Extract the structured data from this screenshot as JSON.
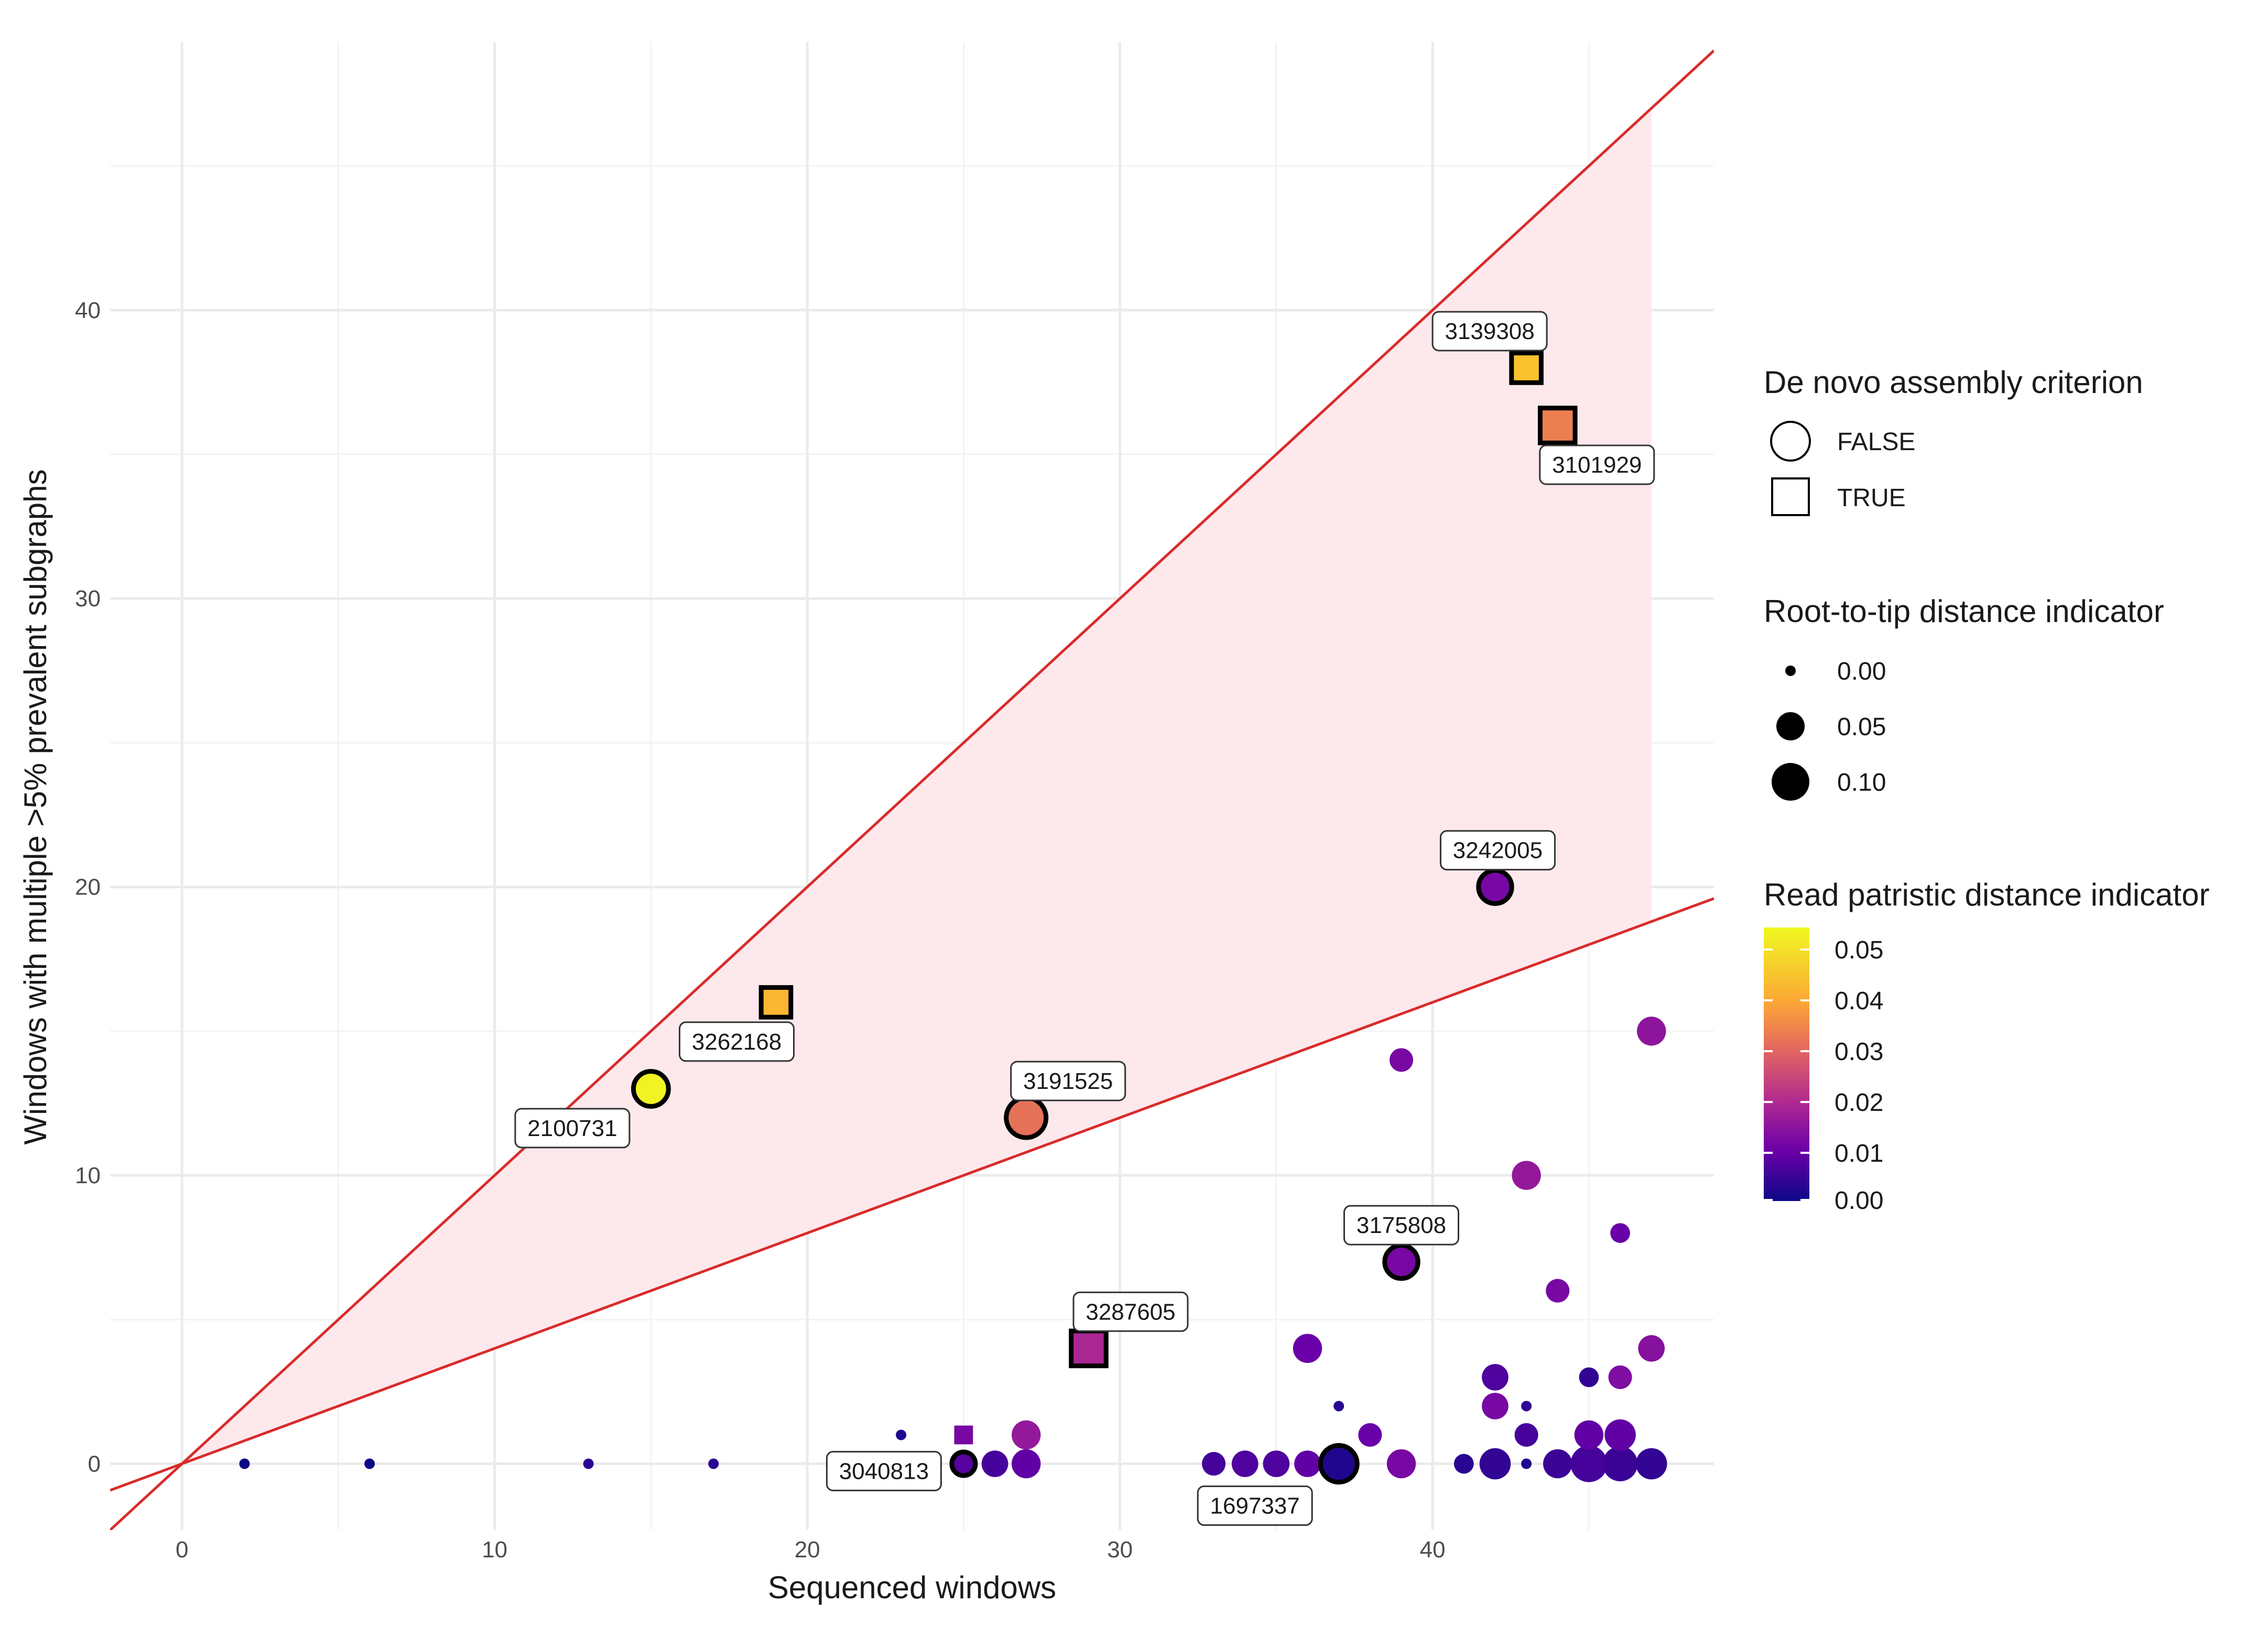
{
  "chart_data": {
    "type": "scatter",
    "xlabel": "Sequenced windows",
    "ylabel": "Windows with multiple >5% prevalent subgraphs",
    "xlim": [
      -2.3,
      49
    ],
    "ylim": [
      -2.3,
      49.3
    ],
    "x_ticks": [
      0,
      10,
      20,
      30,
      40
    ],
    "y_ticks": [
      0,
      10,
      20,
      30,
      40
    ],
    "grid": true,
    "reference_lines": [
      {
        "name": "upper",
        "slope": 1.0,
        "intercept": 0
      },
      {
        "name": "lower",
        "slope": 0.4,
        "intercept": 0
      }
    ],
    "shaded_region": {
      "between": [
        "lower",
        "upper"
      ],
      "x_range": [
        0,
        47
      ],
      "color": "#fde8ec"
    },
    "line_color": "#d92b2b",
    "legends": {
      "shape": {
        "title": "De novo assembly criterion",
        "entries": [
          {
            "label": "FALSE",
            "shape": "circle"
          },
          {
            "label": "TRUE",
            "shape": "square"
          }
        ]
      },
      "size": {
        "title": "Root-to-tip distance indicator",
        "entries": [
          "0.00",
          "0.05",
          "0.10"
        ],
        "values": [
          0.0,
          0.05,
          0.1
        ]
      },
      "color": {
        "title": "Read patristic distance indicator",
        "ticks": [
          "0.05",
          "0.04",
          "0.03",
          "0.02",
          "0.01",
          "0.00"
        ],
        "range": [
          0.0,
          0.055
        ],
        "palette": "plasma"
      }
    },
    "points": [
      {
        "x": 2,
        "y": 0,
        "size": 0.0,
        "color": 0.0,
        "assembly": false
      },
      {
        "x": 6,
        "y": 0,
        "size": 0.0,
        "color": 0.0,
        "assembly": false
      },
      {
        "x": 13,
        "y": 0,
        "size": 0.0,
        "color": 0.003,
        "assembly": false
      },
      {
        "x": 17,
        "y": 0,
        "size": 0.0,
        "color": 0.003,
        "assembly": false
      },
      {
        "x": 23,
        "y": 1,
        "size": 0.0,
        "color": 0.002,
        "assembly": false
      },
      {
        "x": 25,
        "y": 1,
        "size": 0.01,
        "color": 0.012,
        "assembly": true
      },
      {
        "x": 25,
        "y": 0,
        "size": 0.02,
        "color": 0.008,
        "assembly": false,
        "outlined": true,
        "label": "3040813"
      },
      {
        "x": 26,
        "y": 0,
        "size": 0.03,
        "color": 0.006,
        "assembly": false
      },
      {
        "x": 27,
        "y": 0,
        "size": 0.04,
        "color": 0.009,
        "assembly": false
      },
      {
        "x": 27,
        "y": 1,
        "size": 0.04,
        "color": 0.016,
        "assembly": false
      },
      {
        "x": 15,
        "y": 13,
        "size": 0.07,
        "color": 0.054,
        "assembly": false,
        "outlined": true,
        "label": "2100731"
      },
      {
        "x": 19,
        "y": 16,
        "size": 0.05,
        "color": 0.043,
        "assembly": true,
        "outlined": true,
        "label": "3262168"
      },
      {
        "x": 27,
        "y": 12,
        "size": 0.1,
        "color": 0.032,
        "assembly": false,
        "outlined": true,
        "label": "3191525"
      },
      {
        "x": 29,
        "y": 4,
        "size": 0.08,
        "color": 0.019,
        "assembly": true,
        "outlined": true,
        "label": "3287605"
      },
      {
        "x": 33,
        "y": 0,
        "size": 0.02,
        "color": 0.006,
        "assembly": false
      },
      {
        "x": 34,
        "y": 0,
        "size": 0.03,
        "color": 0.007,
        "assembly": false
      },
      {
        "x": 35,
        "y": 0,
        "size": 0.03,
        "color": 0.007,
        "assembly": false
      },
      {
        "x": 36,
        "y": 0,
        "size": 0.03,
        "color": 0.009,
        "assembly": false
      },
      {
        "x": 36,
        "y": 4,
        "size": 0.04,
        "color": 0.01,
        "assembly": false
      },
      {
        "x": 37,
        "y": 0,
        "size": 0.08,
        "color": 0.002,
        "assembly": false,
        "outlined": true,
        "label": "1697337"
      },
      {
        "x": 37,
        "y": 2,
        "size": 0.0,
        "color": 0.003,
        "assembly": false
      },
      {
        "x": 38,
        "y": 1,
        "size": 0.02,
        "color": 0.01,
        "assembly": false
      },
      {
        "x": 39,
        "y": 0,
        "size": 0.04,
        "color": 0.012,
        "assembly": false
      },
      {
        "x": 39,
        "y": 7,
        "size": 0.06,
        "color": 0.012,
        "assembly": false,
        "outlined": true,
        "label": "3175808"
      },
      {
        "x": 39,
        "y": 14,
        "size": 0.02,
        "color": 0.012,
        "assembly": false
      },
      {
        "x": 41,
        "y": 0,
        "size": 0.01,
        "color": 0.003,
        "assembly": false
      },
      {
        "x": 42,
        "y": 0,
        "size": 0.05,
        "color": 0.004,
        "assembly": false
      },
      {
        "x": 42,
        "y": 2,
        "size": 0.03,
        "color": 0.012,
        "assembly": false
      },
      {
        "x": 42,
        "y": 3,
        "size": 0.03,
        "color": 0.007,
        "assembly": false
      },
      {
        "x": 42,
        "y": 20,
        "size": 0.06,
        "color": 0.012,
        "assembly": false,
        "outlined": true,
        "label": "3242005"
      },
      {
        "x": 43,
        "y": 0,
        "size": 0.0,
        "color": 0.002,
        "assembly": false
      },
      {
        "x": 43,
        "y": 1,
        "size": 0.02,
        "color": 0.006,
        "assembly": false
      },
      {
        "x": 43,
        "y": 2,
        "size": 0.0,
        "color": 0.004,
        "assembly": false
      },
      {
        "x": 43,
        "y": 10,
        "size": 0.04,
        "color": 0.016,
        "assembly": false
      },
      {
        "x": 43,
        "y": 38,
        "size": 0.05,
        "color": 0.045,
        "assembly": true,
        "outlined": true,
        "label": "3139308"
      },
      {
        "x": 44,
        "y": 0,
        "size": 0.04,
        "color": 0.005,
        "assembly": false
      },
      {
        "x": 44,
        "y": 6,
        "size": 0.02,
        "color": 0.012,
        "assembly": false
      },
      {
        "x": 44,
        "y": 36,
        "size": 0.08,
        "color": 0.034,
        "assembly": true,
        "outlined": true,
        "label": "3101929"
      },
      {
        "x": 45,
        "y": 0,
        "size": 0.08,
        "color": 0.006,
        "assembly": false
      },
      {
        "x": 45,
        "y": 1,
        "size": 0.04,
        "color": 0.009,
        "assembly": false
      },
      {
        "x": 45,
        "y": 3,
        "size": 0.01,
        "color": 0.004,
        "assembly": false
      },
      {
        "x": 46,
        "y": 0,
        "size": 0.07,
        "color": 0.005,
        "assembly": false
      },
      {
        "x": 46,
        "y": 1,
        "size": 0.05,
        "color": 0.009,
        "assembly": false
      },
      {
        "x": 46,
        "y": 3,
        "size": 0.02,
        "color": 0.013,
        "assembly": false
      },
      {
        "x": 46,
        "y": 8,
        "size": 0.01,
        "color": 0.01,
        "assembly": false
      },
      {
        "x": 47,
        "y": 0,
        "size": 0.05,
        "color": 0.004,
        "assembly": false
      },
      {
        "x": 47,
        "y": 4,
        "size": 0.03,
        "color": 0.014,
        "assembly": false
      },
      {
        "x": 47,
        "y": 15,
        "size": 0.04,
        "color": 0.015,
        "assembly": false
      }
    ]
  }
}
